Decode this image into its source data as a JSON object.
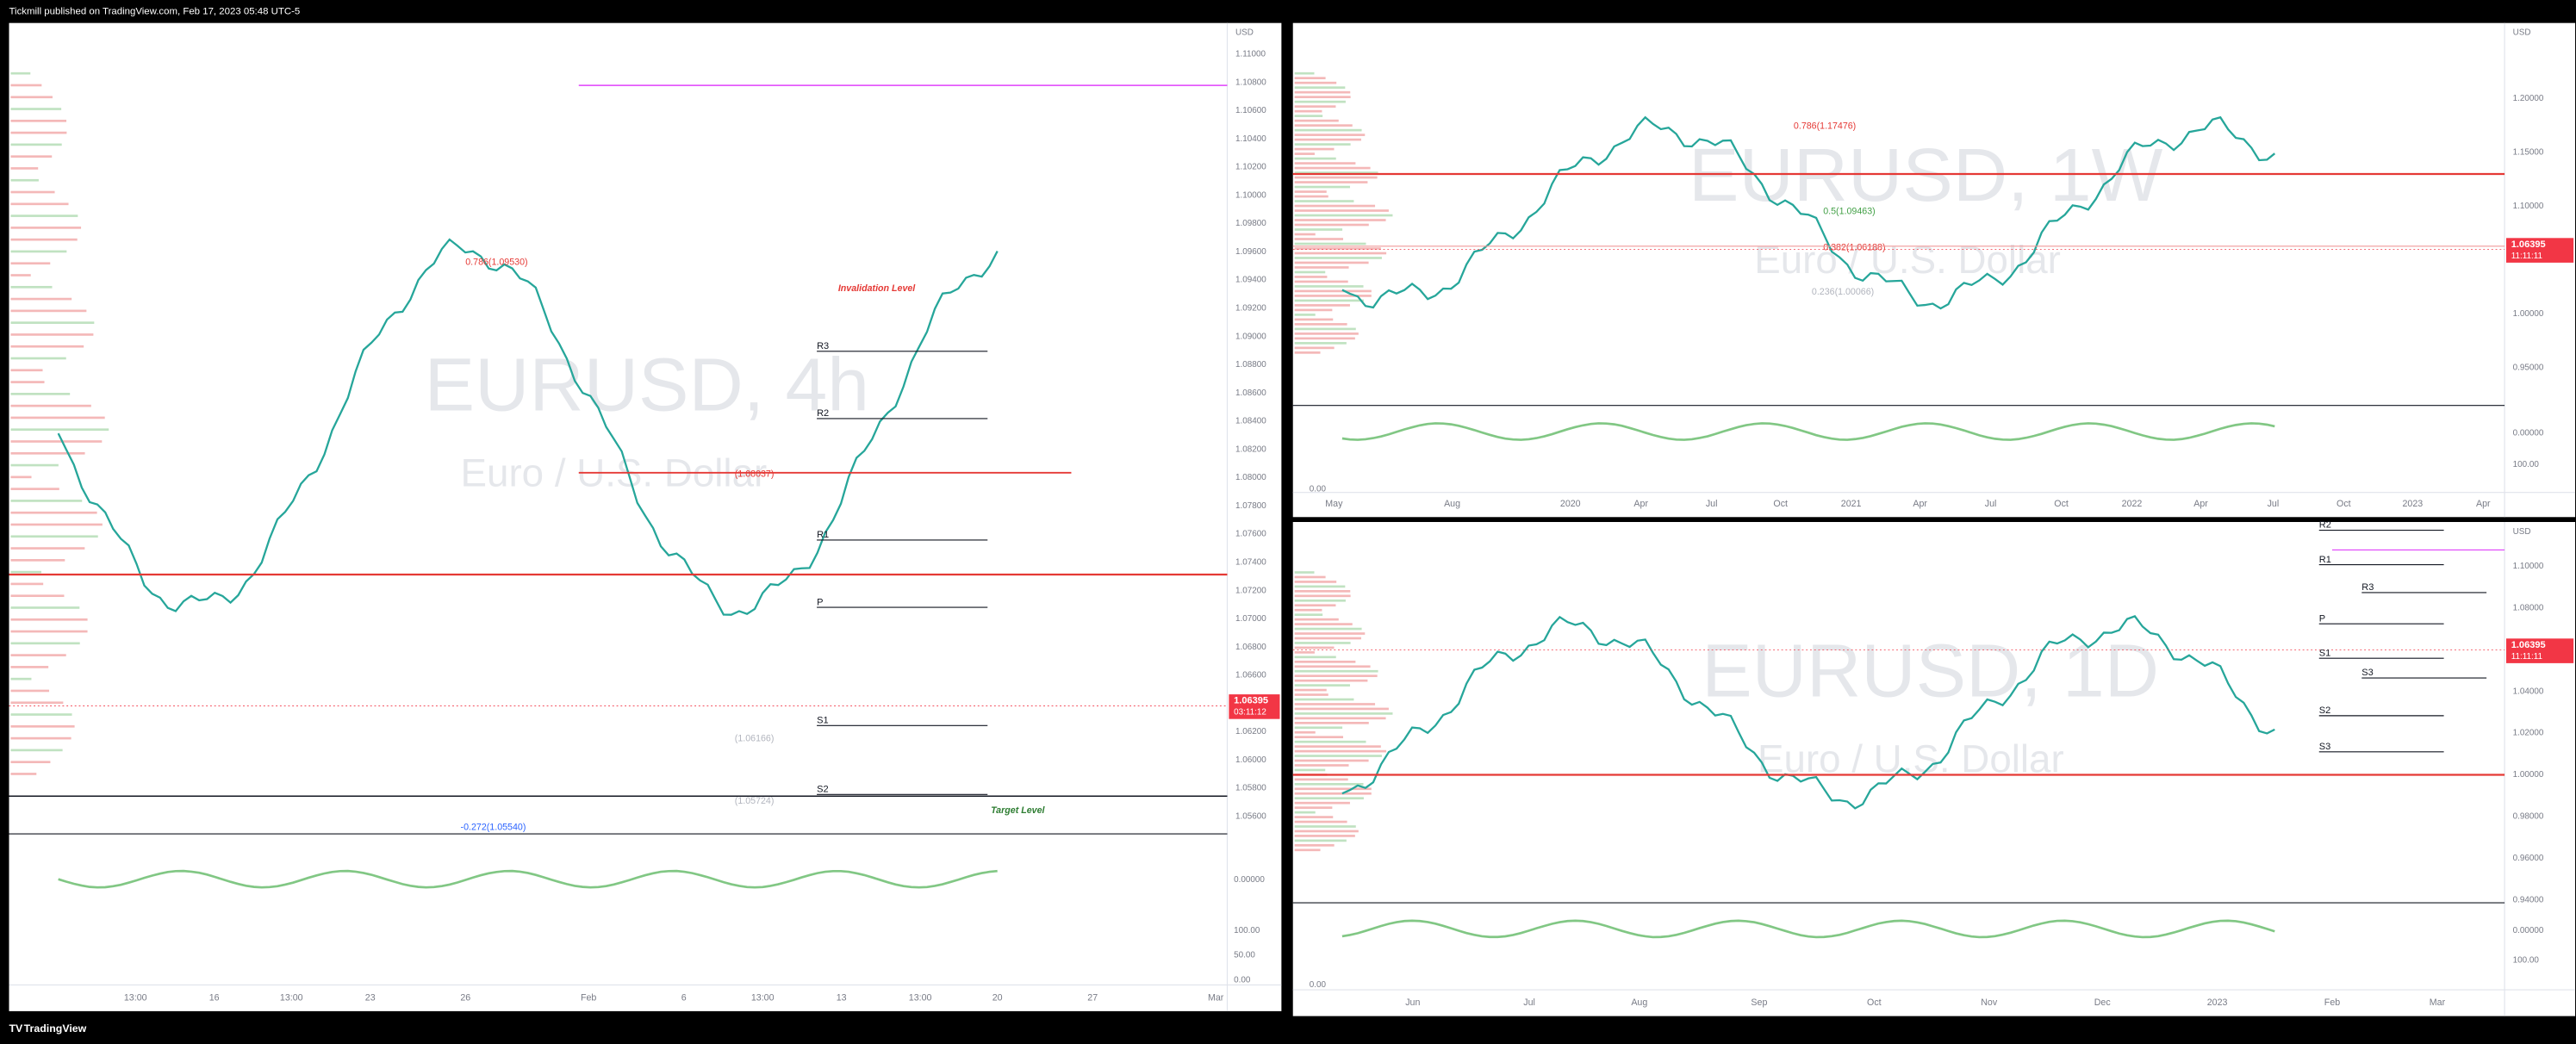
{
  "header": {
    "text": "Tickmill published on TradingView.com, Feb 17, 2023 05:48 UTC-5"
  },
  "footer": {
    "brand": "TradingView"
  },
  "panels": [
    {
      "symbol": "EURUSD, 4h",
      "description": "Euro / U.S. Dollar",
      "currency": "USD",
      "price_axis": [
        "1.11000",
        "1.10800",
        "1.10600",
        "1.10400",
        "1.10200",
        "1.10000",
        "1.09800",
        "1.09600",
        "1.09400",
        "1.09200",
        "1.09000",
        "1.08800",
        "1.08600",
        "1.08400",
        "1.08200",
        "1.08000",
        "1.07800",
        "1.07600",
        "1.07400",
        "1.07200",
        "1.07000",
        "1.06800",
        "1.06600",
        "1.06400",
        "1.06200",
        "1.06000",
        "1.05800",
        "1.05600"
      ],
      "price_tag": "1.06395",
      "countdown": "03:11:12",
      "time_axis": [
        "13:00",
        "16",
        "13:00",
        "23",
        "26",
        "Feb",
        "6",
        "13:00",
        "13",
        "13:00",
        "20",
        "27",
        "Mar"
      ],
      "annotations": [
        "0.786(1.09530)",
        "Invalidation Level",
        "(1.08037)",
        "-0.272(1.05540)",
        "Target Level",
        "(1.06166)",
        "(1.05724)"
      ],
      "pivots": [
        "R3",
        "R2",
        "R1",
        "P",
        "S1",
        "S2"
      ],
      "oscillator_axis": [
        "0.00000",
        "100.00",
        "50.00",
        "0.00"
      ]
    },
    {
      "symbol": "EURUSD, 1W",
      "description": "Euro / U.S. Dollar",
      "currency": "USD",
      "price_axis": [
        "1.20000",
        "1.15000",
        "1.10000",
        "1.05000",
        "1.00000",
        "0.95000"
      ],
      "price_tag": "1.06395",
      "countdown": "11:11:11",
      "time_axis": [
        "May",
        "Aug",
        "2020",
        "Apr",
        "Jul",
        "Oct",
        "2021",
        "Apr",
        "Jul",
        "Oct",
        "2022",
        "Apr",
        "Jul",
        "Oct",
        "2023",
        "Apr"
      ],
      "annotations": [
        "0.786(1.17476)",
        "0.5(1.09463)",
        "0.382(1.06188)",
        "0.236(1.00066)"
      ],
      "pivots": [],
      "oscillator_axis": [
        "0.00000",
        "100.00",
        "0.00"
      ]
    },
    {
      "symbol": "EURUSD, 1D",
      "description": "Euro / U.S. Dollar",
      "currency": "USD",
      "price_axis": [
        "1.10000",
        "1.08000",
        "1.06000",
        "1.04000",
        "1.02000",
        "1.00000",
        "0.98000",
        "0.96000",
        "0.94000"
      ],
      "price_tag": "1.06395",
      "countdown": "11:11:11",
      "time_axis": [
        "Jun",
        "Jul",
        "Aug",
        "Sep",
        "Oct",
        "Nov",
        "Dec",
        "2023",
        "Feb",
        "Mar"
      ],
      "annotations": [],
      "pivots": [
        "R2",
        "R1",
        "R3",
        "P",
        "S1",
        "S3",
        "S2",
        "S3"
      ],
      "oscillator_axis": [
        "0.00000",
        "100.00",
        "0.00"
      ]
    }
  ]
}
